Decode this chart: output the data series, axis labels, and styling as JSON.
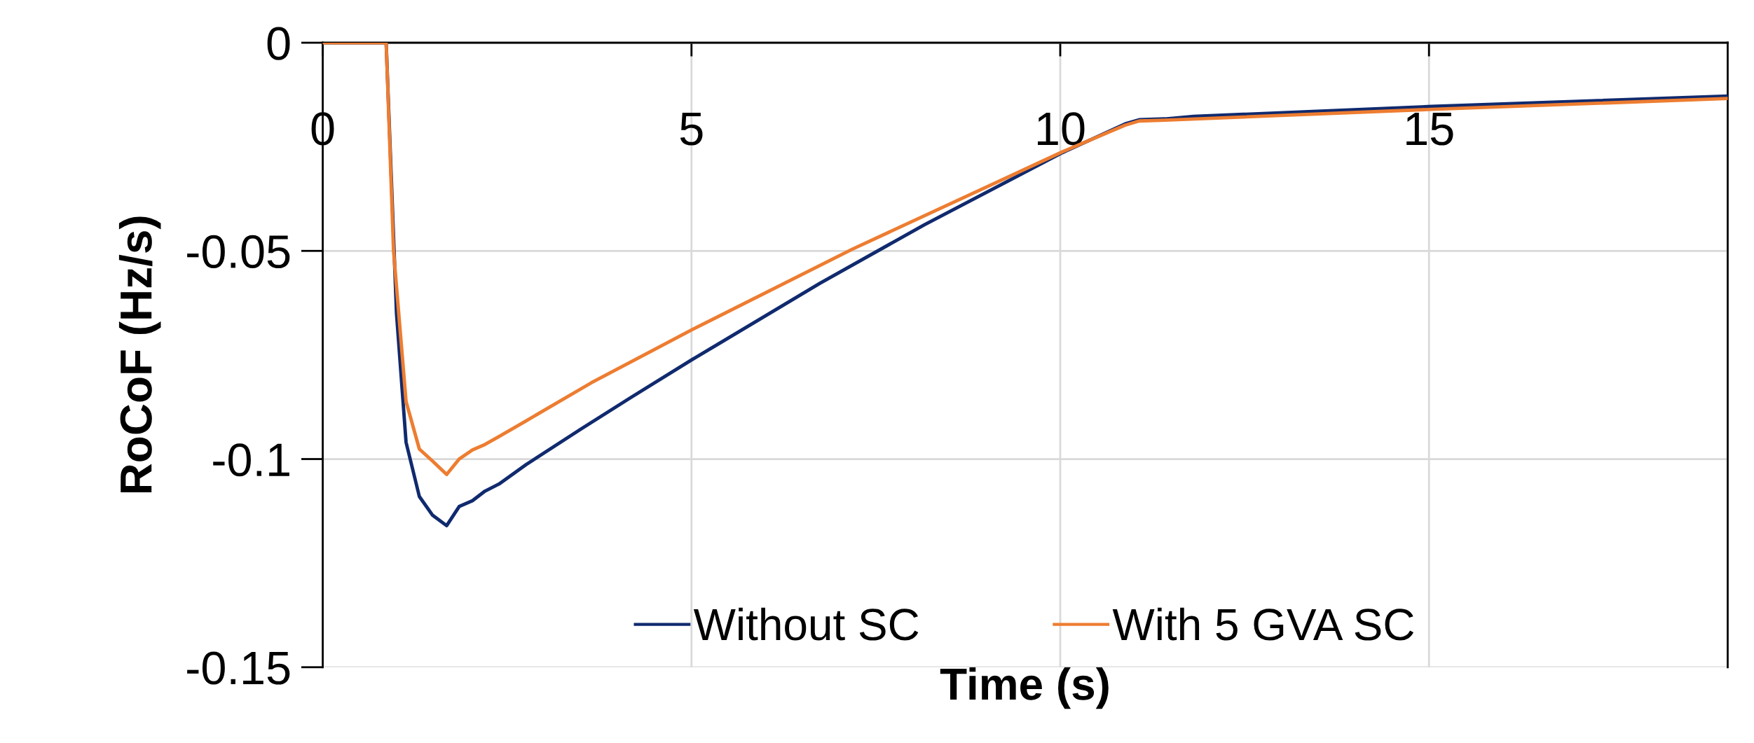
{
  "chart_data": {
    "type": "line",
    "xlabel": "Time (s)",
    "ylabel": "RoCoF (Hz/s)",
    "xlim": [
      0,
      19.05
    ],
    "xticks": [
      0,
      5,
      10,
      15
    ],
    "ylim": [
      -0.15,
      0
    ],
    "yticks": [
      0,
      -0.05,
      -0.1,
      -0.15
    ],
    "grid": true,
    "legend": "bottom",
    "marker": "none",
    "line_style": "solid",
    "series": [
      {
        "name": "Without SC",
        "color": "#102a6e",
        "x": [
          0,
          0.86,
          1.0,
          1.13,
          1.31,
          1.49,
          1.68,
          1.85,
          2.03,
          2.2,
          2.39,
          2.76,
          3.5,
          4.18,
          5.01,
          6.74,
          8.16,
          10.03,
          10.88,
          11.07,
          11.42,
          11.81,
          15.04,
          19.05
        ],
        "values": [
          0,
          0,
          -0.065,
          -0.096,
          -0.109,
          -0.1135,
          -0.116,
          -0.1114,
          -0.11,
          -0.1077,
          -0.106,
          -0.1013,
          -0.0928,
          -0.0852,
          -0.0761,
          -0.0578,
          -0.0437,
          -0.0264,
          -0.0195,
          -0.0185,
          -0.0183,
          -0.0177,
          -0.0153,
          -0.0128
        ]
      },
      {
        "name": "With 5 GVA SC",
        "color": "#ed7d31",
        "x": [
          0,
          0.86,
          0.96,
          1.13,
          1.31,
          1.49,
          1.68,
          1.85,
          2.03,
          2.2,
          2.39,
          2.76,
          3.64,
          4.56,
          5.01,
          7.18,
          10.03,
          10.88,
          11.07,
          11.42,
          15.04,
          19.05
        ],
        "values": [
          0,
          0,
          -0.05,
          -0.0862,
          -0.0976,
          -0.1005,
          -0.1037,
          -0.1,
          -0.0978,
          -0.0965,
          -0.0946,
          -0.0908,
          -0.0817,
          -0.0731,
          -0.0689,
          -0.0496,
          -0.0262,
          -0.0198,
          -0.0188,
          -0.0186,
          -0.016,
          -0.0134
        ]
      }
    ]
  }
}
